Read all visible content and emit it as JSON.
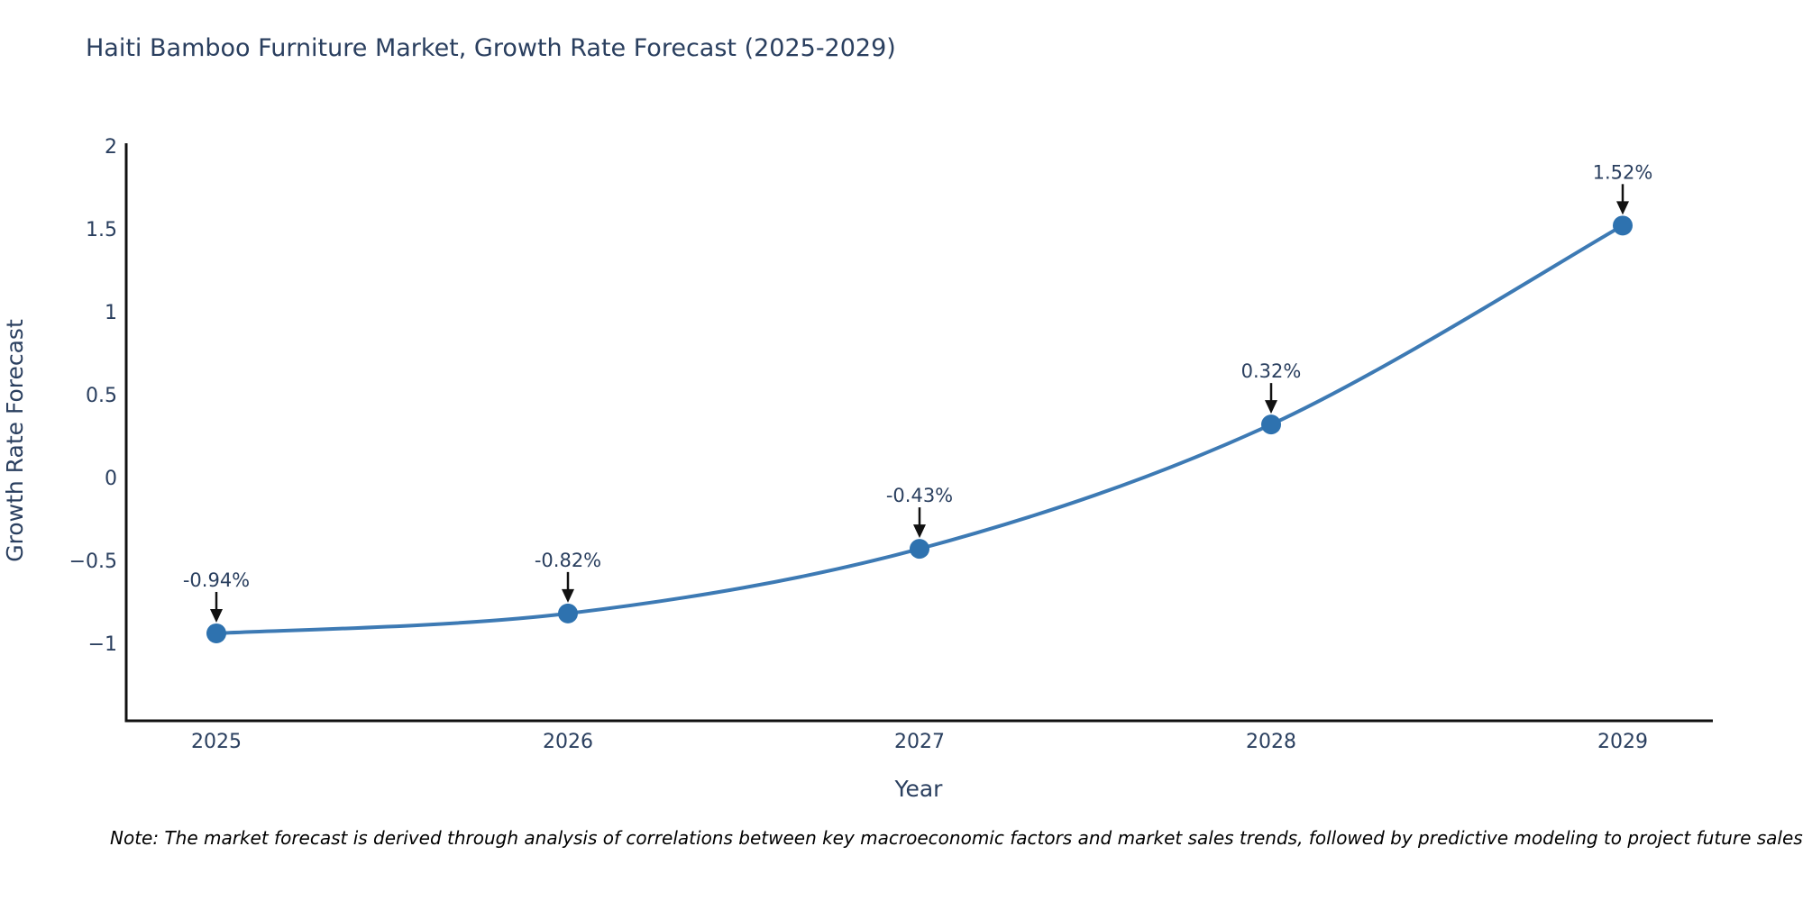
{
  "title": "Haiti Bamboo Furniture Market, Growth Rate Forecast (2025-2029)",
  "note": "Note: The market forecast is derived through analysis of correlations between key macroeconomic factors and market sales trends, followed by predictive modeling to project future sales.",
  "chart_data": {
    "type": "line",
    "title": "Haiti Bamboo Furniture Market, Growth Rate Forecast (2025-2029)",
    "xlabel": "Year",
    "ylabel": "Growth Rate Forecast",
    "categories": [
      "2025",
      "2026",
      "2027",
      "2028",
      "2029"
    ],
    "values": [
      -0.94,
      -0.82,
      -0.43,
      0.32,
      1.52
    ],
    "point_labels": [
      "-0.94%",
      "-0.82%",
      "-0.43%",
      "0.32%",
      "1.52%"
    ],
    "y_tick_values": [
      2,
      1.5,
      1,
      0.5,
      0,
      -0.5,
      -1
    ],
    "y_tick_labels": [
      "2",
      "1.5",
      "1",
      "0.5",
      "0",
      "−0.5",
      "−1"
    ],
    "ylim": [
      -1.47,
      2.02
    ],
    "grid": false,
    "legend": "none",
    "line_shape": "spline",
    "colors": {
      "line": "#3d7ab4",
      "marker": "#2e72af",
      "text": "#2a3f5f",
      "axis": "#111111",
      "arrow": "#111111",
      "note": "#000000",
      "background": "#ffffff"
    }
  }
}
